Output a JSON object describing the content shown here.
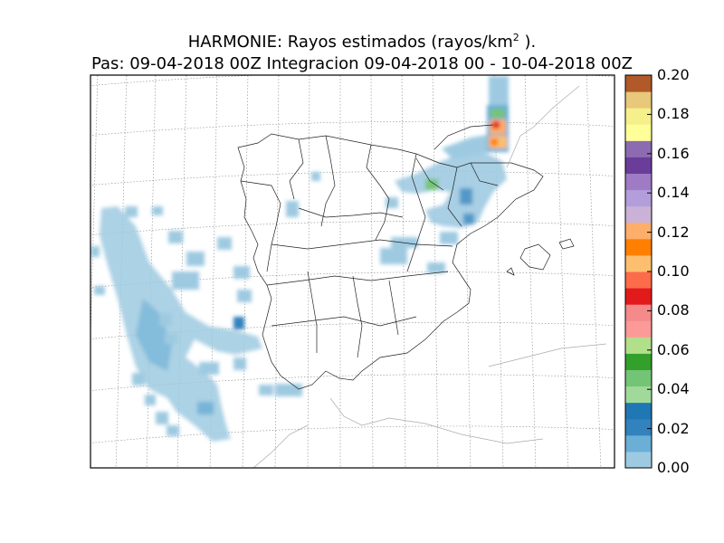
{
  "title": {
    "line1_prefix": "HARMONIE: Rayos estimados  (rayos/km",
    "line1_sup": "2",
    "line1_suffix": " ).",
    "line2": "Pas: 09-04-2018 00Z Integracion 09-04-2018 00 - 10-04-2018 00Z"
  },
  "colorbar": {
    "ticks": [
      "0.20",
      "0.18",
      "0.16",
      "0.14",
      "0.12",
      "0.10",
      "0.08",
      "0.06",
      "0.04",
      "0.02",
      "0.00"
    ],
    "colors": [
      "#9ecae1",
      "#6baed6",
      "#3182bd",
      "#1f78b4",
      "#a1d99b",
      "#74c476",
      "#33a02c",
      "#b2df8a",
      "#fb9a99",
      "#f48a8a",
      "#e31a1c",
      "#fc6b4a",
      "#fdbf6f",
      "#ff7f00",
      "#fdae6b",
      "#cab2d6",
      "#b39ddb",
      "#9e7bc4",
      "#6a3d9a",
      "#8c6bb1",
      "#ffff99",
      "#f6f08a",
      "#e8c87a",
      "#b15928"
    ]
  }
}
